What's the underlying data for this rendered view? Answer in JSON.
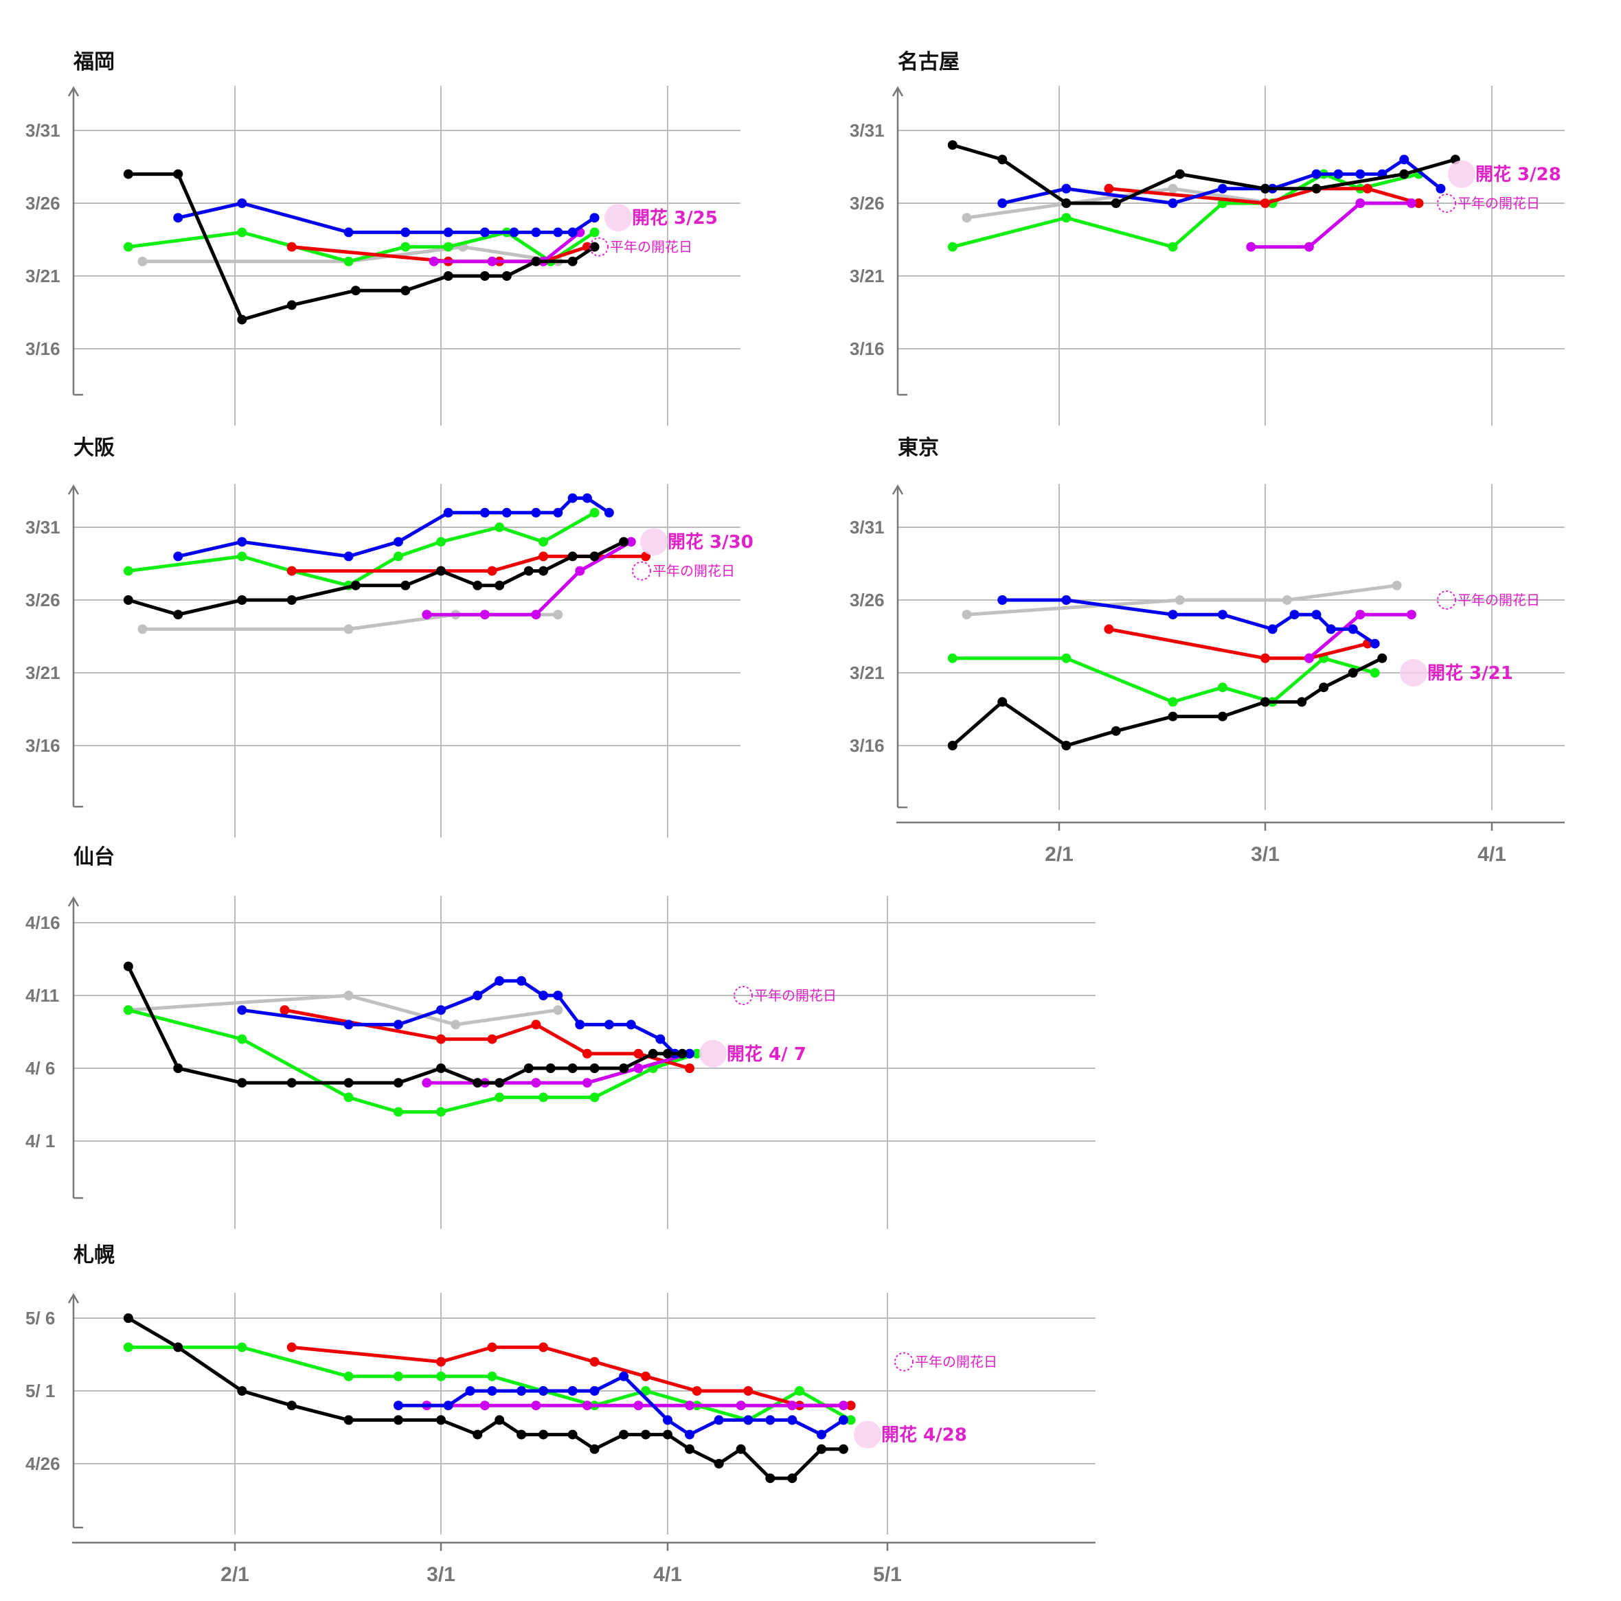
{
  "colors": {
    "black": "#000000",
    "blue": "#0000ee",
    "green": "#11ee11",
    "red": "#ee0000",
    "gray": "#c0c0c0",
    "purple": "#cc00ee",
    "bloom": "#e020c8"
  },
  "chart_data": [
    {
      "type": "line",
      "title": "福岡",
      "yticks": [
        "3/31",
        "3/26",
        "3/21",
        "3/16"
      ],
      "bloom_label": "開花 3/25",
      "normal_label": "平年の開花日",
      "series": [
        {
          "color": "black",
          "x": [
            "1/17",
            "1/24",
            "2/2",
            "2/9",
            "2/18",
            "2/25",
            "3/2",
            "3/7",
            "3/10",
            "3/14",
            "3/19",
            "3/22"
          ],
          "y": [
            "3/28",
            "3/28",
            "3/18",
            "3/19",
            "3/20",
            "3/20",
            "3/21",
            "3/21",
            "3/21",
            "3/22",
            "3/22",
            "3/23"
          ]
        },
        {
          "color": "blue",
          "x": [
            "1/24",
            "2/2",
            "2/17",
            "2/25",
            "3/2",
            "3/7",
            "3/11",
            "3/14",
            "3/17",
            "3/19",
            "3/22"
          ],
          "y": [
            "3/25",
            "3/26",
            "3/24",
            "3/24",
            "3/24",
            "3/24",
            "3/24",
            "3/24",
            "3/24",
            "3/24",
            "3/25"
          ]
        },
        {
          "color": "green",
          "x": [
            "1/17",
            "2/2",
            "2/17",
            "2/25",
            "3/2",
            "3/10",
            "3/16",
            "3/22"
          ],
          "y": [
            "3/23",
            "3/24",
            "3/22",
            "3/23",
            "3/23",
            "3/24",
            "3/22",
            "3/24"
          ]
        },
        {
          "color": "red",
          "x": [
            "2/9",
            "3/2",
            "3/9",
            "3/15",
            "3/21"
          ],
          "y": [
            "3/23",
            "3/22",
            "3/22",
            "3/22",
            "3/23"
          ]
        },
        {
          "color": "gray",
          "x": [
            "1/19",
            "2/17",
            "3/4",
            "3/17"
          ],
          "y": [
            "3/22",
            "3/22",
            "3/23",
            "3/22"
          ]
        },
        {
          "color": "purple",
          "x": [
            "2/29",
            "3/8",
            "3/15",
            "3/20"
          ],
          "y": [
            "3/22",
            "3/22",
            "3/22",
            "3/24"
          ]
        }
      ]
    },
    {
      "type": "line",
      "title": "名古屋",
      "yticks": [
        "3/31",
        "3/26",
        "3/21",
        "3/16"
      ],
      "bloom_label": "開花 3/28",
      "normal_label": "平年の開花日",
      "series": [
        {
          "color": "black",
          "x": [
            "1/17",
            "1/24",
            "2/2",
            "2/9",
            "2/18",
            "3/1",
            "3/8",
            "3/20",
            "3/27"
          ],
          "y": [
            "3/30",
            "3/29",
            "3/26",
            "3/26",
            "3/28",
            "3/27",
            "3/27",
            "3/28",
            "3/29"
          ]
        },
        {
          "color": "blue",
          "x": [
            "1/24",
            "2/2",
            "2/17",
            "2/24",
            "3/1",
            "3/2",
            "3/8",
            "3/11",
            "3/14",
            "3/17",
            "3/20",
            "3/25"
          ],
          "y": [
            "3/26",
            "3/27",
            "3/26",
            "3/27",
            "3/27",
            "3/27",
            "3/28",
            "3/28",
            "3/28",
            "3/28",
            "3/29",
            "3/27"
          ]
        },
        {
          "color": "green",
          "x": [
            "1/17",
            "2/2",
            "2/17",
            "2/24",
            "3/2",
            "3/9",
            "3/14",
            "3/22"
          ],
          "y": [
            "3/23",
            "3/25",
            "3/23",
            "3/26",
            "3/26",
            "3/28",
            "3/27",
            "3/28"
          ]
        },
        {
          "color": "red",
          "x": [
            "2/8",
            "3/1",
            "3/8",
            "3/15",
            "3/22"
          ],
          "y": [
            "3/27",
            "3/26",
            "3/27",
            "3/27",
            "3/26"
          ]
        },
        {
          "color": "gray",
          "x": [
            "1/19",
            "2/17",
            "3/2"
          ],
          "y": [
            "3/25",
            "3/27",
            "3/26"
          ]
        },
        {
          "color": "purple",
          "x": [
            "2/28",
            "3/7",
            "3/14",
            "3/21"
          ],
          "y": [
            "3/23",
            "3/23",
            "3/26",
            "3/26"
          ]
        }
      ]
    },
    {
      "type": "line",
      "title": "大阪",
      "yticks": [
        "3/31",
        "3/26",
        "3/21",
        "3/16"
      ],
      "bloom_label": "開花 3/30",
      "normal_label": "平年の開花日",
      "series": [
        {
          "color": "black",
          "x": [
            "1/17",
            "1/24",
            "2/2",
            "2/9",
            "2/18",
            "2/25",
            "3/1",
            "3/6",
            "3/9",
            "3/13",
            "3/15",
            "3/19",
            "3/22",
            "3/26"
          ],
          "y": [
            "3/26",
            "3/25",
            "3/26",
            "3/26",
            "3/27",
            "3/27",
            "3/28",
            "3/27",
            "3/27",
            "3/28",
            "3/28",
            "3/29",
            "3/29",
            "3/30"
          ]
        },
        {
          "color": "blue",
          "x": [
            "1/24",
            "2/2",
            "2/17",
            "2/24",
            "3/2",
            "3/7",
            "3/10",
            "3/14",
            "3/17",
            "3/19",
            "3/21",
            "3/24"
          ],
          "y": [
            "3/29",
            "3/30",
            "3/29",
            "3/30",
            "3/32",
            "3/32",
            "3/32",
            "3/32",
            "3/32",
            "3/33",
            "3/33",
            "3/32"
          ]
        },
        {
          "color": "green",
          "x": [
            "1/17",
            "2/2",
            "2/9",
            "2/17",
            "2/24",
            "3/1",
            "3/9",
            "3/15",
            "3/22"
          ],
          "y": [
            "3/28",
            "3/29",
            "3/28",
            "3/27",
            "3/29",
            "3/30",
            "3/31",
            "3/30",
            "3/32"
          ]
        },
        {
          "color": "red",
          "x": [
            "2/9",
            "3/1",
            "3/8",
            "3/15",
            "3/22",
            "3/29"
          ],
          "y": [
            "3/28",
            "3/28",
            "3/28",
            "3/29",
            "3/29",
            "3/29"
          ]
        },
        {
          "color": "gray",
          "x": [
            "1/19",
            "2/17",
            "3/3",
            "3/17"
          ],
          "y": [
            "3/24",
            "3/24",
            "3/25",
            "3/25"
          ]
        },
        {
          "color": "purple",
          "x": [
            "2/28",
            "3/7",
            "3/14",
            "3/20",
            "3/27"
          ],
          "y": [
            "3/25",
            "3/25",
            "3/25",
            "3/28",
            "3/30"
          ]
        }
      ]
    },
    {
      "type": "line",
      "title": "東京",
      "yticks": [
        "3/31",
        "3/26",
        "3/21",
        "3/16"
      ],
      "bloom_label": "開花 3/21",
      "normal_label": "平年の開花日",
      "series": [
        {
          "color": "black",
          "x": [
            "1/17",
            "1/24",
            "2/2",
            "2/9",
            "2/17",
            "2/24",
            "3/1",
            "3/6",
            "3/9",
            "3/13",
            "3/17"
          ],
          "y": [
            "3/16",
            "3/19",
            "3/16",
            "3/17",
            "3/18",
            "3/18",
            "3/19",
            "3/19",
            "3/20",
            "3/21",
            "3/22"
          ]
        },
        {
          "color": "blue",
          "x": [
            "1/24",
            "2/2",
            "2/17",
            "2/24",
            "3/2",
            "3/5",
            "3/8",
            "3/10",
            "3/13",
            "3/16"
          ],
          "y": [
            "3/26",
            "3/26",
            "3/25",
            "3/25",
            "3/24",
            "3/25",
            "3/25",
            "3/24",
            "3/24",
            "3/23"
          ]
        },
        {
          "color": "green",
          "x": [
            "1/17",
            "2/2",
            "2/17",
            "2/24",
            "3/2",
            "3/9",
            "3/16"
          ],
          "y": [
            "3/22",
            "3/22",
            "3/19",
            "3/20",
            "3/19",
            "3/22",
            "3/21"
          ]
        },
        {
          "color": "red",
          "x": [
            "2/8",
            "3/1",
            "3/7",
            "3/15"
          ],
          "y": [
            "3/24",
            "3/22",
            "3/22",
            "3/23"
          ]
        },
        {
          "color": "gray",
          "x": [
            "1/19",
            "2/18",
            "3/4",
            "3/19"
          ],
          "y": [
            "3/25",
            "3/26",
            "3/26",
            "3/27"
          ]
        },
        {
          "color": "purple",
          "x": [
            "3/7",
            "3/14",
            "3/21"
          ],
          "y": [
            "3/22",
            "3/25",
            "3/25"
          ]
        }
      ]
    },
    {
      "type": "line",
      "title": "仙台",
      "yticks": [
        "4/16",
        "4/11",
        "4/ 6",
        "4/ 1"
      ],
      "bloom_label": "開花 4/ 7",
      "normal_label": "平年の開花日",
      "series": [
        {
          "color": "black",
          "x": [
            "1/17",
            "1/24",
            "2/2",
            "2/9",
            "2/17",
            "2/24",
            "3/1",
            "3/6",
            "3/9",
            "3/13",
            "3/16",
            "3/19",
            "3/22",
            "3/26",
            "3/30",
            "4/1",
            "4/3"
          ],
          "y": [
            "4/13",
            "4/6",
            "4/5",
            "4/5",
            "4/5",
            "4/5",
            "4/6",
            "4/5",
            "4/5",
            "4/6",
            "4/6",
            "4/6",
            "4/6",
            "4/6",
            "4/7",
            "4/7",
            "4/7"
          ]
        },
        {
          "color": "blue",
          "x": [
            "2/2",
            "2/17",
            "2/24",
            "3/1",
            "3/6",
            "3/9",
            "3/12",
            "3/15",
            "3/17",
            "3/20",
            "3/24",
            "3/27",
            "3/31",
            "4/2",
            "4/4"
          ],
          "y": [
            "4/10",
            "4/9",
            "4/9",
            "4/10",
            "4/11",
            "4/12",
            "4/12",
            "4/11",
            "4/11",
            "4/9",
            "4/9",
            "4/9",
            "4/8",
            "4/7",
            "4/7"
          ]
        },
        {
          "color": "green",
          "x": [
            "1/17",
            "2/2",
            "2/17",
            "2/24",
            "3/1",
            "3/9",
            "3/15",
            "3/22",
            "3/30",
            "4/5"
          ],
          "y": [
            "4/10",
            "4/8",
            "4/4",
            "4/3",
            "4/3",
            "4/4",
            "4/4",
            "4/4",
            "4/6",
            "4/7"
          ]
        },
        {
          "color": "red",
          "x": [
            "2/8",
            "3/1",
            "3/8",
            "3/14",
            "3/21",
            "3/28",
            "4/4"
          ],
          "y": [
            "4/10",
            "4/8",
            "4/8",
            "4/9",
            "4/7",
            "4/7",
            "4/6"
          ]
        },
        {
          "color": "gray",
          "x": [
            "1/17",
            "2/17",
            "3/3",
            "3/17"
          ],
          "y": [
            "4/10",
            "4/11",
            "4/9",
            "4/10"
          ]
        },
        {
          "color": "purple",
          "x": [
            "2/28",
            "3/7",
            "3/14",
            "3/21",
            "3/28",
            "4/4"
          ],
          "y": [
            "4/5",
            "4/5",
            "4/5",
            "4/5",
            "4/6",
            "4/7"
          ]
        }
      ]
    },
    {
      "type": "line",
      "title": "札幌",
      "yticks": [
        "5/ 6",
        "5/ 1",
        "4/26"
      ],
      "bloom_label": "開花 4/28",
      "normal_label": "平年の開花日",
      "series": [
        {
          "color": "black",
          "x": [
            "1/17",
            "1/24",
            "2/2",
            "2/9",
            "2/17",
            "2/24",
            "3/1",
            "3/6",
            "3/9",
            "3/12",
            "3/15",
            "3/19",
            "3/22",
            "3/26",
            "3/29",
            "4/1",
            "4/4",
            "4/8",
            "4/11",
            "4/15",
            "4/18",
            "4/22",
            "4/25"
          ],
          "y": [
            "5/6",
            "5/4",
            "5/1",
            "4/30",
            "4/29",
            "4/29",
            "4/29",
            "4/28",
            "4/29",
            "4/28",
            "4/28",
            "4/28",
            "4/27",
            "4/28",
            "4/28",
            "4/28",
            "4/27",
            "4/26",
            "4/27",
            "4/25",
            "4/25",
            "4/27",
            "4/27"
          ]
        },
        {
          "color": "blue",
          "x": [
            "2/24",
            "3/2",
            "3/5",
            "3/8",
            "3/12",
            "3/15",
            "3/19",
            "3/22",
            "3/26",
            "4/1",
            "4/4",
            "4/8",
            "4/12",
            "4/15",
            "4/18",
            "4/22",
            "4/25"
          ],
          "y": [
            "4/30",
            "4/30",
            "5/1",
            "5/1",
            "5/1",
            "5/1",
            "5/1",
            "5/1",
            "5/2",
            "4/29",
            "4/28",
            "4/29",
            "4/29",
            "4/29",
            "4/29",
            "4/28",
            "4/29"
          ]
        },
        {
          "color": "green",
          "x": [
            "1/17",
            "2/2",
            "2/17",
            "2/24",
            "3/1",
            "3/8",
            "3/15",
            "3/22",
            "3/29",
            "4/5",
            "4/12",
            "4/19",
            "4/26"
          ],
          "y": [
            "5/4",
            "5/4",
            "5/2",
            "5/2",
            "5/2",
            "5/2",
            "5/1",
            "4/30",
            "5/1",
            "4/30",
            "4/29",
            "5/1",
            "4/29"
          ]
        },
        {
          "color": "red",
          "x": [
            "2/9",
            "3/1",
            "3/8",
            "3/15",
            "3/22",
            "3/29",
            "4/5",
            "4/12",
            "4/19",
            "4/26"
          ],
          "y": [
            "5/4",
            "5/3",
            "5/4",
            "5/4",
            "5/3",
            "5/2",
            "5/1",
            "5/1",
            "4/30",
            "4/30"
          ]
        },
        {
          "color": "purple",
          "x": [
            "2/28",
            "3/7",
            "3/14",
            "3/21",
            "3/28",
            "4/4",
            "4/11",
            "4/18",
            "4/25"
          ],
          "y": [
            "4/30",
            "4/30",
            "4/30",
            "4/30",
            "4/30",
            "4/30",
            "4/30",
            "4/30",
            "4/30"
          ]
        }
      ]
    }
  ],
  "xticks": [
    "2/1",
    "3/1",
    "4/1",
    "5/1"
  ]
}
